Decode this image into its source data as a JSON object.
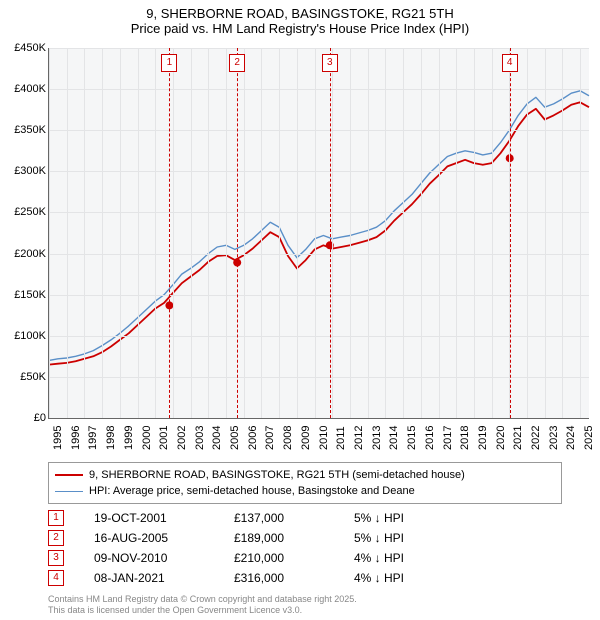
{
  "title_line1": "9, SHERBORNE ROAD, BASINGSTOKE, RG21 5TH",
  "title_line2": "Price paid vs. HM Land Registry's House Price Index (HPI)",
  "chart": {
    "type": "line",
    "background_color": "#f5f6f7",
    "grid_color": "#e3e4e6",
    "axis_color": "#666666",
    "xlim": [
      1995,
      2025.5
    ],
    "ylim": [
      0,
      450
    ],
    "ytick_step": 50,
    "ytick_labels": [
      "£0",
      "£50K",
      "£100K",
      "£150K",
      "£200K",
      "£250K",
      "£300K",
      "£350K",
      "£400K",
      "£450K"
    ],
    "xtick_labels": [
      "1995",
      "1996",
      "1997",
      "1998",
      "1999",
      "2000",
      "2001",
      "2002",
      "2003",
      "2004",
      "2005",
      "2006",
      "2007",
      "2008",
      "2009",
      "2010",
      "2011",
      "2012",
      "2013",
      "2014",
      "2015",
      "2016",
      "2017",
      "2018",
      "2019",
      "2020",
      "2021",
      "2022",
      "2023",
      "2024",
      "2025"
    ],
    "axis_fontsize": 11,
    "series": [
      {
        "name": "hpi",
        "color": "#5a8fc8",
        "width": 1.4,
        "x": [
          1995,
          1995.5,
          1996,
          1996.5,
          1997,
          1997.5,
          1998,
          1998.5,
          1999,
          1999.5,
          2000,
          2000.5,
          2001,
          2001.5,
          2002,
          2002.5,
          2003,
          2003.5,
          2004,
          2004.5,
          2005,
          2005.5,
          2006,
          2006.5,
          2007,
          2007.5,
          2008,
          2008.5,
          2009,
          2009.5,
          2010,
          2010.5,
          2011,
          2011.5,
          2012,
          2012.5,
          2013,
          2013.5,
          2014,
          2014.5,
          2015,
          2015.5,
          2016,
          2016.5,
          2017,
          2017.5,
          2018,
          2018.5,
          2019,
          2019.5,
          2020,
          2020.5,
          2021,
          2021.5,
          2022,
          2022.5,
          2023,
          2023.5,
          2024,
          2024.5,
          2025,
          2025.5
        ],
        "y": [
          70,
          72,
          73,
          75,
          78,
          82,
          88,
          95,
          103,
          112,
          122,
          132,
          142,
          150,
          162,
          175,
          182,
          190,
          200,
          208,
          210,
          205,
          210,
          218,
          228,
          238,
          232,
          210,
          195,
          205,
          218,
          222,
          218,
          220,
          222,
          225,
          228,
          232,
          240,
          252,
          262,
          272,
          285,
          298,
          308,
          318,
          322,
          325,
          323,
          320,
          322,
          335,
          350,
          368,
          382,
          390,
          378,
          382,
          388,
          395,
          398,
          392
        ]
      },
      {
        "name": "price_paid",
        "color": "#cc0000",
        "width": 1.8,
        "x": [
          1995,
          1995.5,
          1996,
          1996.5,
          1997,
          1997.5,
          1998,
          1998.5,
          1999,
          1999.5,
          2000,
          2000.5,
          2001,
          2001.5,
          2002,
          2002.5,
          2003,
          2003.5,
          2004,
          2004.5,
          2005,
          2005.5,
          2006,
          2006.5,
          2007,
          2007.5,
          2008,
          2008.5,
          2009,
          2009.5,
          2010,
          2010.5,
          2011,
          2011.5,
          2012,
          2012.5,
          2013,
          2013.5,
          2014,
          2014.5,
          2015,
          2015.5,
          2016,
          2016.5,
          2017,
          2017.5,
          2018,
          2018.5,
          2019,
          2019.5,
          2020,
          2020.5,
          2021,
          2021.5,
          2022,
          2022.5,
          2023,
          2023.5,
          2024,
          2024.5,
          2025,
          2025.5
        ],
        "y": [
          65,
          66,
          67,
          69,
          72,
          75,
          80,
          87,
          95,
          103,
          113,
          123,
          133,
          140,
          152,
          164,
          172,
          180,
          190,
          197,
          198,
          192,
          198,
          206,
          216,
          226,
          220,
          197,
          182,
          192,
          205,
          210,
          206,
          208,
          210,
          213,
          216,
          220,
          228,
          240,
          250,
          260,
          272,
          285,
          295,
          306,
          310,
          314,
          310,
          308,
          310,
          322,
          337,
          355,
          369,
          376,
          363,
          368,
          374,
          381,
          384,
          378
        ]
      }
    ],
    "markers": [
      {
        "x": 2001.8,
        "y": 137,
        "color": "#cc0000",
        "size": 4
      },
      {
        "x": 2005.63,
        "y": 189,
        "color": "#cc0000",
        "size": 4
      },
      {
        "x": 2010.86,
        "y": 210,
        "color": "#cc0000",
        "size": 4
      },
      {
        "x": 2021.02,
        "y": 316,
        "color": "#cc0000",
        "size": 4
      }
    ],
    "sale_lines": [
      {
        "x": 2001.8,
        "label": "1"
      },
      {
        "x": 2005.63,
        "label": "2"
      },
      {
        "x": 2010.86,
        "label": "3"
      },
      {
        "x": 2021.02,
        "label": "4"
      }
    ],
    "sale_line_color": "#cc0000",
    "sale_box_border": "#cc0000",
    "sale_box_bg": "#ffffff"
  },
  "legend": {
    "border_color": "#999999",
    "fontsize": 11,
    "items": [
      {
        "label": "9, SHERBORNE ROAD, BASINGSTOKE, RG21 5TH (semi-detached house)",
        "color": "#cc0000",
        "width": 2
      },
      {
        "label": "HPI: Average price, semi-detached house, Basingstoke and Deane",
        "color": "#5a8fc8",
        "width": 1.4
      }
    ]
  },
  "sales": [
    {
      "idx": "1",
      "date": "19-OCT-2001",
      "price": "£137,000",
      "diff": "5%",
      "direction": "down",
      "suffix": "HPI"
    },
    {
      "idx": "2",
      "date": "16-AUG-2005",
      "price": "£189,000",
      "diff": "5%",
      "direction": "down",
      "suffix": "HPI"
    },
    {
      "idx": "3",
      "date": "09-NOV-2010",
      "price": "£210,000",
      "diff": "4%",
      "direction": "down",
      "suffix": "HPI"
    },
    {
      "idx": "4",
      "date": "08-JAN-2021",
      "price": "£316,000",
      "diff": "4%",
      "direction": "down",
      "suffix": "HPI"
    }
  ],
  "footer_line1": "Contains HM Land Registry data © Crown copyright and database right 2025.",
  "footer_line2": "This data is licensed under the Open Government Licence v3.0.",
  "footer_color": "#888888"
}
